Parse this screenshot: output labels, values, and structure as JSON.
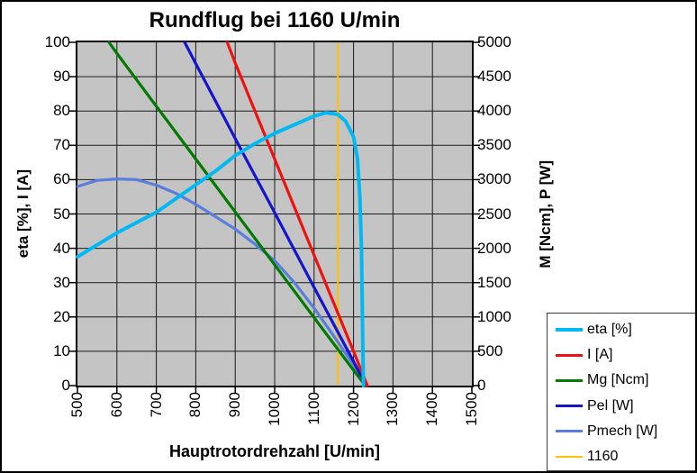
{
  "chart_data": {
    "type": "line",
    "title": "Rundflug bei 1160 U/min",
    "xlabel": "Hauptrotordrehzahl [U/min]",
    "ylabel_left": "eta [%], I [A]",
    "ylabel_right": "M [Ncm], P [W]",
    "xlim": [
      500,
      1500
    ],
    "ylim_left": [
      0,
      100
    ],
    "ylim_right": [
      0,
      5000
    ],
    "x_step": 100,
    "left_step": 10,
    "right_step": 500,
    "grid": true,
    "plot_bg": "#C4C4C4",
    "grid_color": "#1A1A1A",
    "legend_position": "bottom-right",
    "x_ticklabels": [
      "500",
      "600",
      "700",
      "800",
      "900",
      "1000",
      "1100",
      "1200",
      "1300",
      "1400",
      "1500"
    ],
    "left_ticklabels": [
      "0",
      "10",
      "20",
      "30",
      "40",
      "50",
      "60",
      "70",
      "80",
      "90",
      "100"
    ],
    "right_ticklabels": [
      "0",
      "500",
      "1000",
      "1500",
      "2000",
      "2500",
      "3000",
      "3500",
      "4000",
      "4500",
      "5000"
    ],
    "series": [
      {
        "name": "eta [%]",
        "color": "#00B9F2",
        "axis": "left",
        "w": 4,
        "z": 5,
        "points": [
          [
            500,
            37.5
          ],
          [
            550,
            41
          ],
          [
            600,
            44.5
          ],
          [
            650,
            47.5
          ],
          [
            700,
            50.5
          ],
          [
            750,
            54.5
          ],
          [
            800,
            58.5
          ],
          [
            850,
            62.5
          ],
          [
            900,
            67
          ],
          [
            950,
            70.5
          ],
          [
            1000,
            73.5
          ],
          [
            1050,
            76
          ],
          [
            1100,
            78.5
          ],
          [
            1130,
            79.5
          ],
          [
            1160,
            79
          ],
          [
            1180,
            77
          ],
          [
            1200,
            72.5
          ],
          [
            1210,
            66
          ],
          [
            1216,
            55
          ],
          [
            1220,
            40
          ],
          [
            1223,
            15
          ],
          [
            1225,
            0
          ]
        ]
      },
      {
        "name": "I [A]",
        "color": "#ED1111",
        "axis": "left",
        "w": 3.2,
        "z": 4,
        "points": [
          [
            880,
            100
          ],
          [
            900,
            94
          ],
          [
            950,
            80
          ],
          [
            1000,
            66
          ],
          [
            1050,
            52
          ],
          [
            1100,
            38
          ],
          [
            1150,
            24
          ],
          [
            1200,
            10
          ],
          [
            1235,
            0
          ]
        ]
      },
      {
        "name": "Mg [Ncm]",
        "color": "#007A00",
        "axis": "right",
        "w": 3.2,
        "z": 3,
        "points": [
          [
            580,
            5000
          ],
          [
            600,
            4840
          ],
          [
            700,
            4070
          ],
          [
            800,
            3300
          ],
          [
            900,
            2530
          ],
          [
            1000,
            1760
          ],
          [
            1100,
            990
          ],
          [
            1200,
            225
          ],
          [
            1230,
            0
          ]
        ]
      },
      {
        "name": "Pel [W]",
        "color": "#1414CC",
        "axis": "right",
        "w": 3.2,
        "z": 2,
        "points": [
          [
            772,
            5000
          ],
          [
            800,
            4690
          ],
          [
            900,
            3600
          ],
          [
            1000,
            2520
          ],
          [
            1100,
            1430
          ],
          [
            1200,
            350
          ],
          [
            1232,
            0
          ]
        ]
      },
      {
        "name": "Pmech [W]",
        "color": "#5B7EDC",
        "axis": "right",
        "w": 3.2,
        "z": 1,
        "points": [
          [
            500,
            2900
          ],
          [
            550,
            2990
          ],
          [
            600,
            3010
          ],
          [
            650,
            3000
          ],
          [
            700,
            2920
          ],
          [
            750,
            2800
          ],
          [
            800,
            2640
          ],
          [
            850,
            2460
          ],
          [
            900,
            2280
          ],
          [
            950,
            2060
          ],
          [
            1000,
            1820
          ],
          [
            1050,
            1500
          ],
          [
            1100,
            1130
          ],
          [
            1150,
            720
          ],
          [
            1200,
            300
          ],
          [
            1232,
            0
          ]
        ]
      }
    ],
    "vline": {
      "label": "1160",
      "x": 1160,
      "color": "#FFC000",
      "w": 2
    }
  }
}
